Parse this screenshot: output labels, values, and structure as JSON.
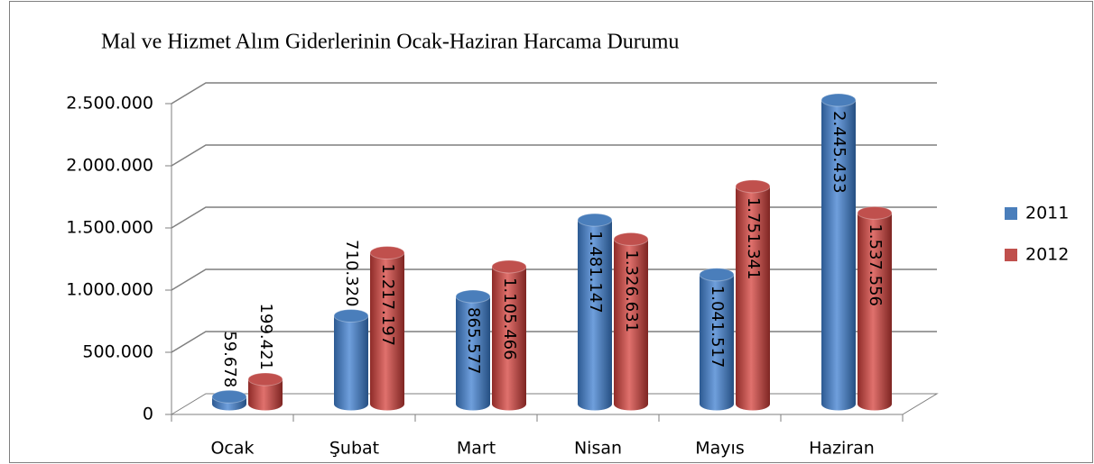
{
  "chart_data": {
    "type": "bar3d",
    "title": "Mal ve Hizmet Alım Giderlerinin Ocak-Haziran Harcama Durumu",
    "categories": [
      "Ocak",
      "Şubat",
      "Mart",
      "Nisan",
      "Mayıs",
      "Haziran"
    ],
    "series": [
      {
        "name": "2011",
        "color": "#4a7ebb",
        "values": [
          59678,
          710320,
          865577,
          1481147,
          1041517,
          2445433
        ],
        "value_labels": [
          "59.678",
          "710.320",
          "865.577",
          "1.481.147",
          "1.041.517",
          "2.445.433"
        ]
      },
      {
        "name": "2012",
        "color": "#c0504d",
        "values": [
          199421,
          1217197,
          1105466,
          1326631,
          1751341,
          1537556
        ],
        "value_labels": [
          "199.421",
          "1.217.197",
          "1.105.466",
          "1.326.631",
          "1.751.341",
          "1.537.556"
        ]
      }
    ],
    "ylim": [
      0,
      2500000
    ],
    "yticks": [
      0,
      {
        "value": 500000,
        "label": "500.000"
      },
      {
        "value": 1000000,
        "label": "1.000.000"
      },
      {
        "value": 1500000,
        "label": "1.500.000"
      },
      {
        "value": 2000000,
        "label": "2.000.000"
      },
      {
        "value": 2500000,
        "label": "2.500.000"
      }
    ],
    "grid": true,
    "legend": "right"
  }
}
